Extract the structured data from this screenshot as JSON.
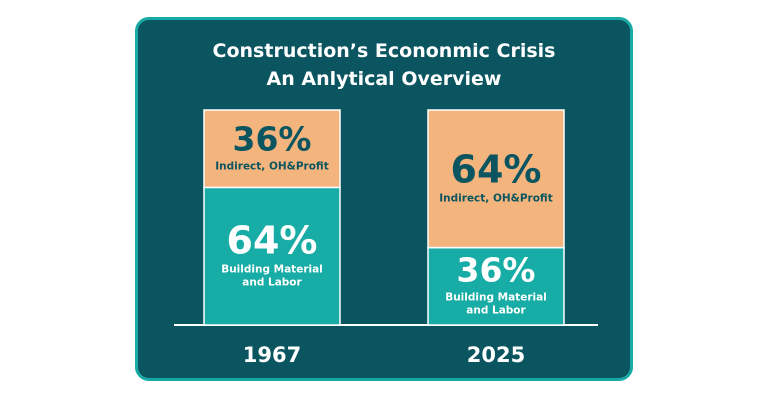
{
  "chart_data": {
    "type": "bar",
    "title": "Construction’s Econonmic Crisis",
    "subtitle": "An Anlytical Overview",
    "categories": [
      "1967",
      "2025"
    ],
    "series": [
      {
        "name": "Building Material and Labor",
        "values": [
          64,
          36
        ],
        "value_labels": [
          "64%",
          "36%"
        ],
        "label_lines": [
          "Building Material",
          "and Labor"
        ],
        "color": "#17aca5",
        "text_color": "#ffffff"
      },
      {
        "name": "Indirect, OH&Profit",
        "values": [
          36,
          64
        ],
        "value_labels": [
          "36%",
          "64%"
        ],
        "label_lines": [
          "Indirect, OH&Profit"
        ],
        "color": "#f3b47d",
        "text_color": "#0b5560"
      }
    ],
    "stacked": true,
    "ylim": [
      0,
      100
    ],
    "grid": false
  },
  "colors": {
    "background": "#0b5560",
    "border": "#17a9a3",
    "baseline": "#ffffff"
  }
}
